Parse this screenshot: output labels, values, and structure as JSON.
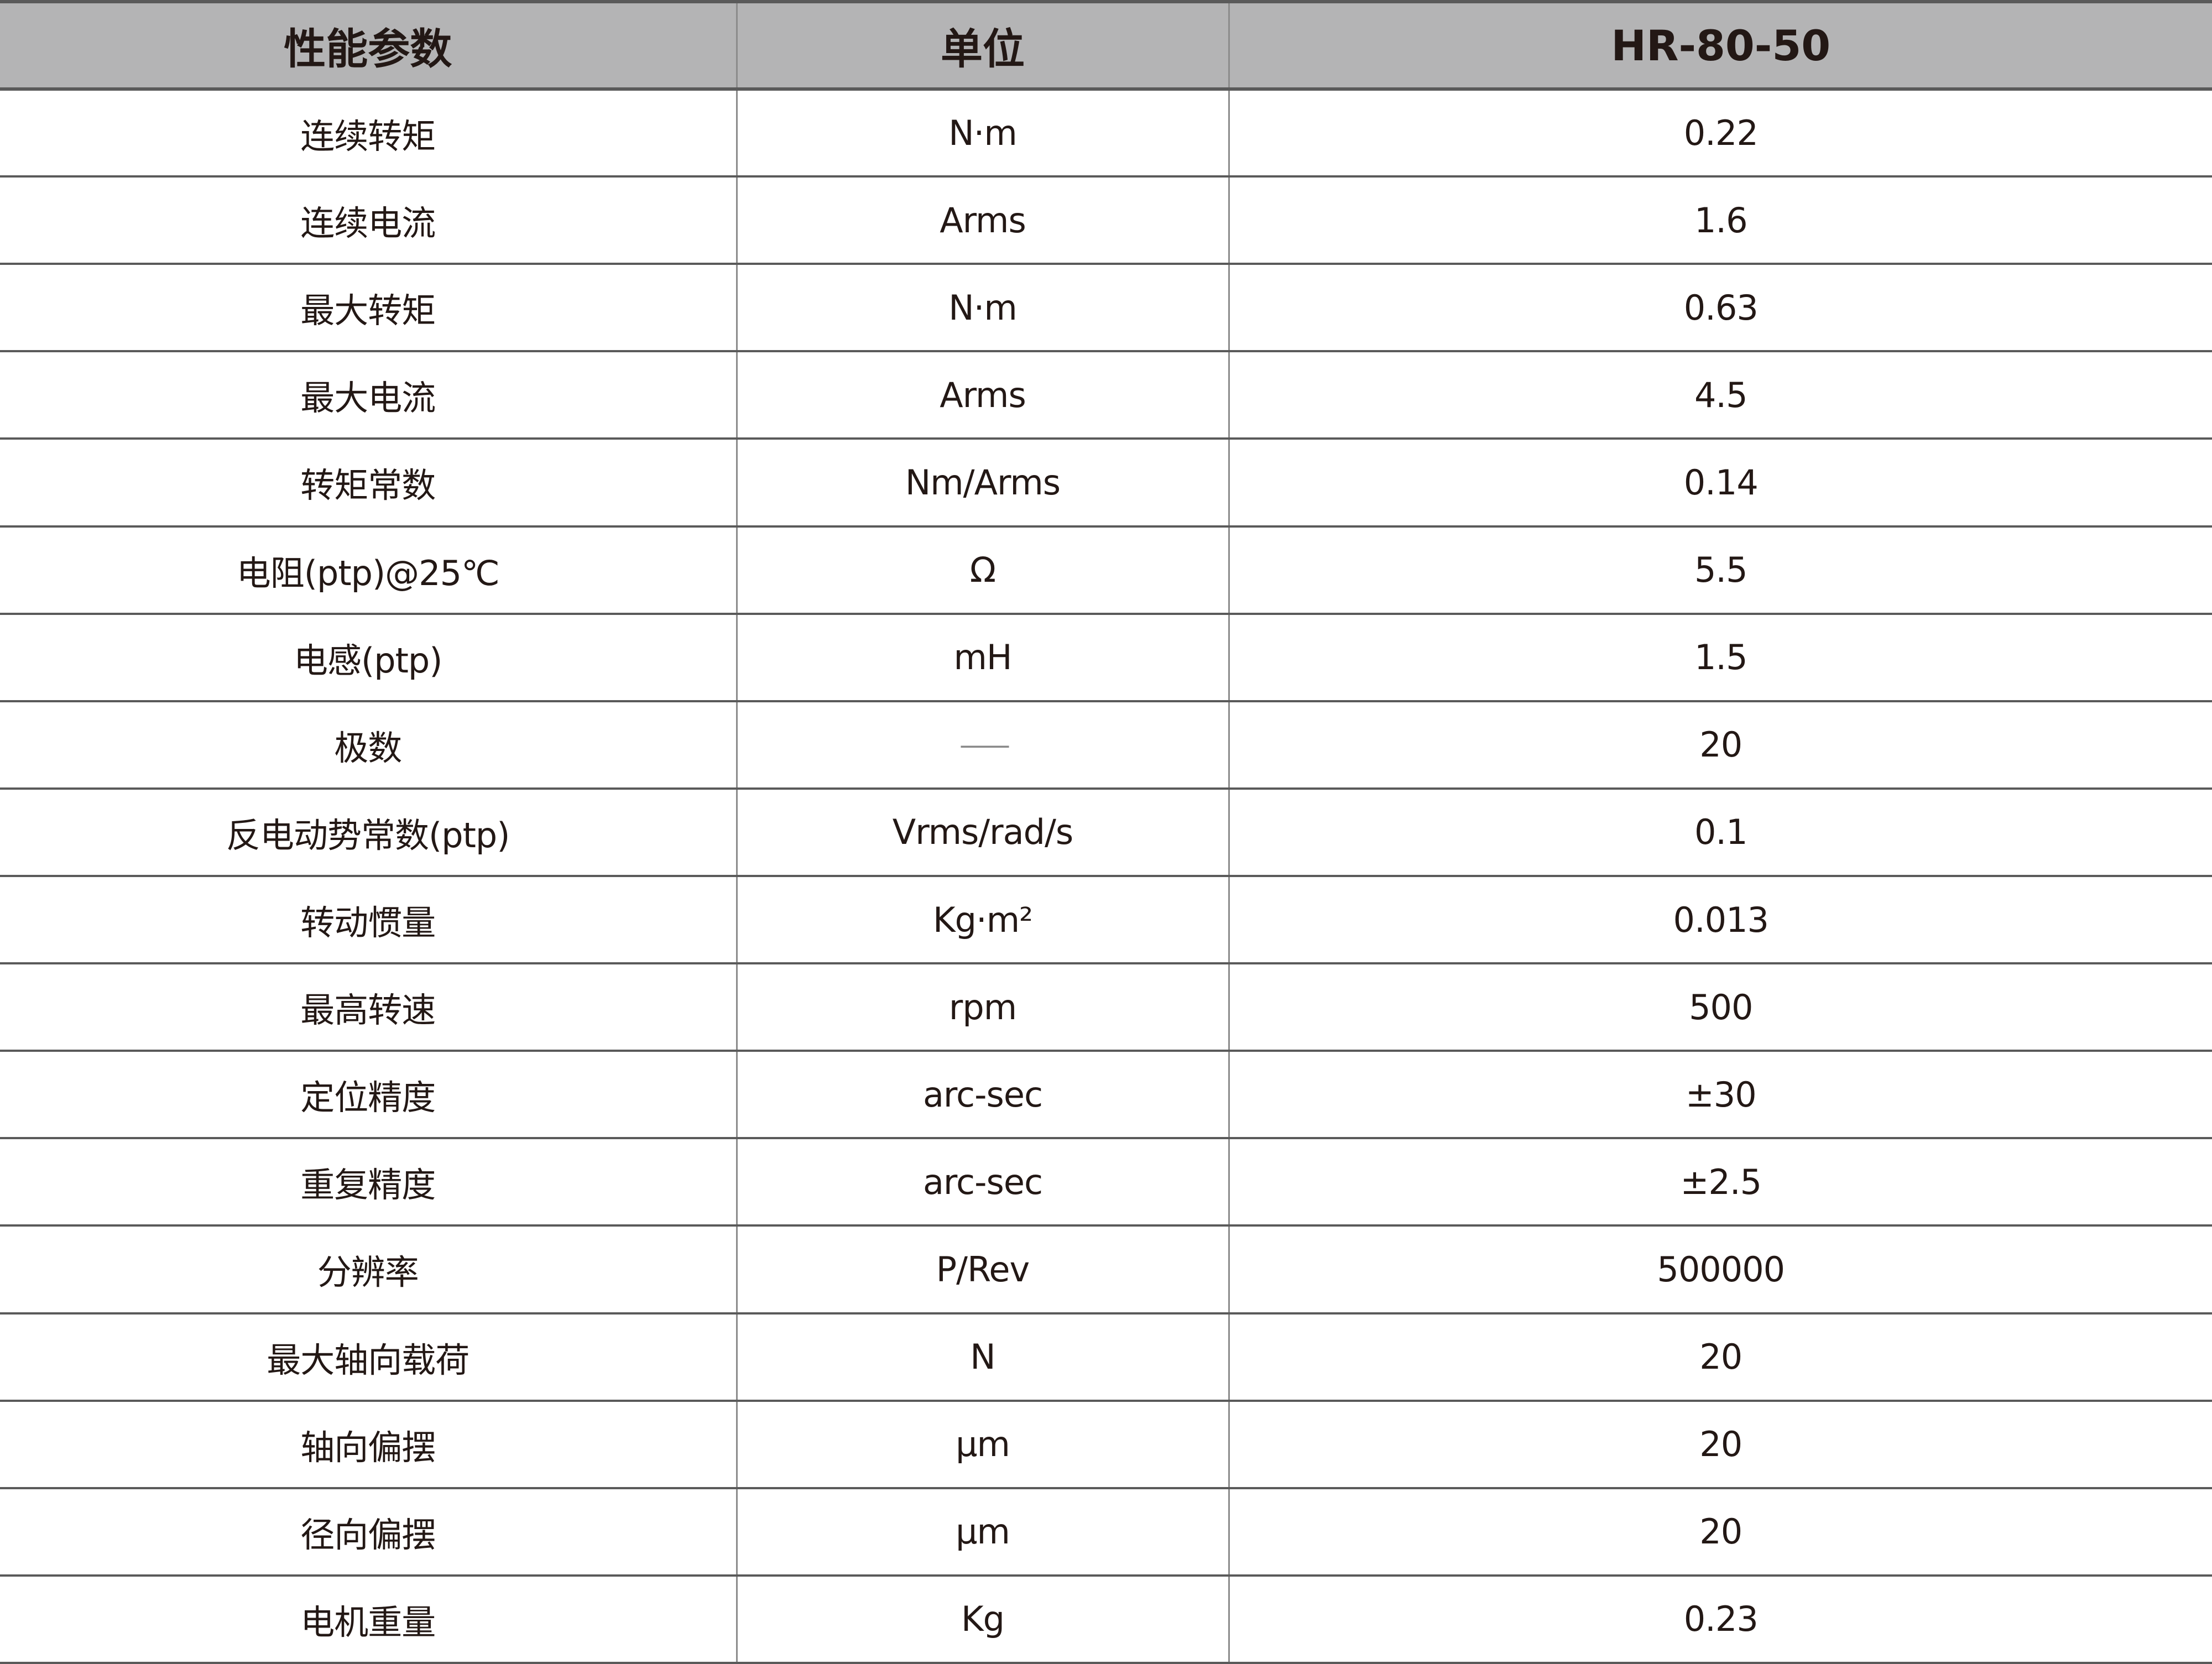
{
  "header": {
    "param": "性能参数",
    "unit": "单位",
    "model": "HR-80-50"
  },
  "rows": [
    {
      "param": "连续转矩",
      "unit": "N·m",
      "value": "0.22"
    },
    {
      "param": "连续电流",
      "unit": "Arms",
      "value": "1.6"
    },
    {
      "param": "最大转矩",
      "unit": "N·m",
      "value": "0.63"
    },
    {
      "param": "最大电流",
      "unit": "Arms",
      "value": "4.5"
    },
    {
      "param": "转矩常数",
      "unit": "Nm/Arms",
      "value": "0.14"
    },
    {
      "param": "电阻(ptp)@25℃",
      "unit": "Ω",
      "value": "5.5"
    },
    {
      "param": "电感(ptp)",
      "unit": "mH",
      "value": "1.5"
    },
    {
      "param": "极数",
      "unit": "——",
      "value": "20"
    },
    {
      "param": "反电动势常数(ptp)",
      "unit": "Vrms/rad/s",
      "value": "0.1"
    },
    {
      "param": "转动惯量",
      "unit": "Kg·m²",
      "value": "0.013"
    },
    {
      "param": "最高转速",
      "unit": "rpm",
      "value": "500"
    },
    {
      "param": "定位精度",
      "unit": "arc-sec",
      "value": "±30"
    },
    {
      "param": "重复精度",
      "unit": "arc-sec",
      "value": "±2.5"
    },
    {
      "param": "分辨率",
      "unit": "P/Rev",
      "value": "500000"
    },
    {
      "param": "最大轴向载荷",
      "unit": "N",
      "value": "20"
    },
    {
      "param": "轴向偏摆",
      "unit": "μm",
      "value": "20"
    },
    {
      "param": "径向偏摆",
      "unit": "μm",
      "value": "20"
    },
    {
      "param": "电机重量",
      "unit": "Kg",
      "value": "0.23"
    }
  ],
  "colors": {
    "header_background": "#b4b4b5",
    "text": "#231815",
    "grid_line": "#5a5a5a"
  }
}
